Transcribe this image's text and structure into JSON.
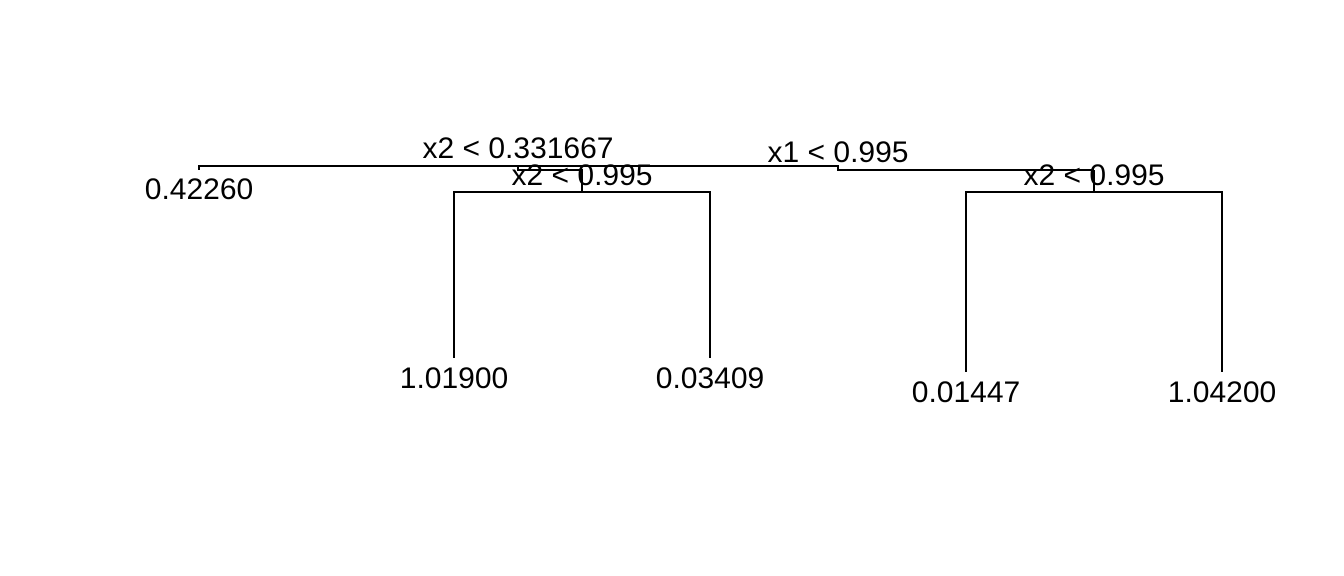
{
  "tree": {
    "splits": {
      "root": "x1 < 0.995",
      "left": "x2 < 0.331667",
      "left_right": "x2 < 0.995",
      "right": "x2 < 0.995"
    },
    "leaves": {
      "leaf_1": "0.42260",
      "leaf_2": "1.01900",
      "leaf_3": "0.03409",
      "leaf_4": "0.01447",
      "leaf_5": "1.04200"
    }
  }
}
